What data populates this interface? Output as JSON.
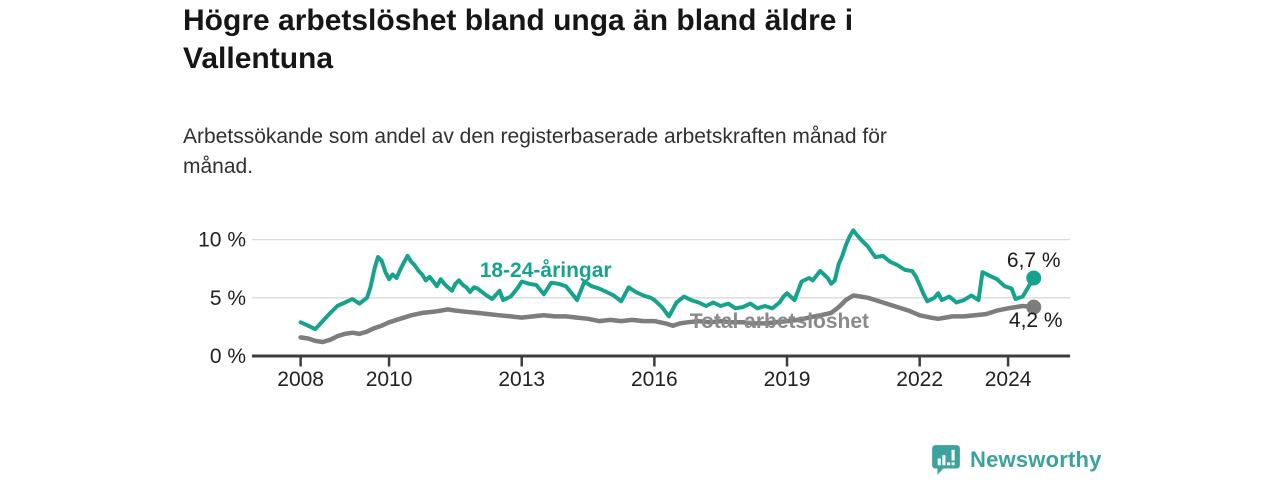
{
  "title": {
    "lines": [
      "Högre arbetslöshet bland unga än bland äldre i",
      "Vallentuna"
    ]
  },
  "subtitle": {
    "lines": [
      "Arbetssökande som andel av den registerbaserade arbetskraften månad för",
      "månad."
    ]
  },
  "colors": {
    "youth_line": "#17a28d",
    "total_line": "#7d7d7d",
    "total_label": "#8a8a8a",
    "axis": "#3d3d3d",
    "gridline": "#d9d9d9",
    "end_label_text": "#1a1a1a",
    "logo_teal": "#3ba39b"
  },
  "chart_data": {
    "type": "line",
    "title": "Högre arbetslöshet bland unga än bland äldre i Vallentuna",
    "subtitle": "Arbetssökande som andel av den registerbaserade arbetskraften månad för månad.",
    "xlabel": "",
    "ylabel": "",
    "x_axis": {
      "range": [
        2006.9,
        2025.4
      ],
      "ticks": [
        {
          "v": 2008,
          "label": "2008"
        },
        {
          "v": 2010,
          "label": "2010"
        },
        {
          "v": 2013,
          "label": "2013"
        },
        {
          "v": 2016,
          "label": "2016"
        },
        {
          "v": 2019,
          "label": "2019"
        },
        {
          "v": 2022,
          "label": "2022"
        },
        {
          "v": 2024,
          "label": "2024"
        }
      ]
    },
    "y_axis": {
      "range": [
        0,
        11.6
      ],
      "ticks": [
        {
          "v": 0,
          "label": "0 %"
        },
        {
          "v": 5,
          "label": "5 %"
        },
        {
          "v": 10,
          "label": "10 %"
        }
      ],
      "grid": true
    },
    "legend_position": "inline-labels",
    "series": [
      {
        "name": "Total arbetslöshet",
        "color": "#7d7d7d",
        "stroke_width": 4.5,
        "end_label": "4,2 %",
        "end_value": 4.2,
        "end_label_position": "below",
        "points": [
          [
            2008.0,
            1.6
          ],
          [
            2008.17,
            1.5
          ],
          [
            2008.33,
            1.3
          ],
          [
            2008.5,
            1.2
          ],
          [
            2008.67,
            1.4
          ],
          [
            2008.83,
            1.7
          ],
          [
            2009.0,
            1.9
          ],
          [
            2009.17,
            2.0
          ],
          [
            2009.33,
            1.9
          ],
          [
            2009.5,
            2.1
          ],
          [
            2009.67,
            2.4
          ],
          [
            2009.83,
            2.6
          ],
          [
            2010.0,
            2.9
          ],
          [
            2010.25,
            3.2
          ],
          [
            2010.5,
            3.5
          ],
          [
            2010.75,
            3.7
          ],
          [
            2011.0,
            3.8
          ],
          [
            2011.17,
            3.9
          ],
          [
            2011.33,
            4.0
          ],
          [
            2011.5,
            3.9
          ],
          [
            2011.75,
            3.8
          ],
          [
            2012.0,
            3.7
          ],
          [
            2012.25,
            3.6
          ],
          [
            2012.5,
            3.5
          ],
          [
            2012.75,
            3.4
          ],
          [
            2013.0,
            3.3
          ],
          [
            2013.25,
            3.4
          ],
          [
            2013.5,
            3.5
          ],
          [
            2013.75,
            3.4
          ],
          [
            2014.0,
            3.4
          ],
          [
            2014.25,
            3.3
          ],
          [
            2014.5,
            3.2
          ],
          [
            2014.75,
            3.0
          ],
          [
            2015.0,
            3.1
          ],
          [
            2015.25,
            3.0
          ],
          [
            2015.5,
            3.1
          ],
          [
            2015.75,
            3.0
          ],
          [
            2016.0,
            3.0
          ],
          [
            2016.25,
            2.8
          ],
          [
            2016.42,
            2.6
          ],
          [
            2016.58,
            2.8
          ],
          [
            2016.75,
            2.9
          ],
          [
            2017.0,
            3.0
          ],
          [
            2017.25,
            2.9
          ],
          [
            2017.5,
            3.0
          ],
          [
            2017.75,
            2.9
          ],
          [
            2018.0,
            2.9
          ],
          [
            2018.25,
            2.8
          ],
          [
            2018.5,
            2.8
          ],
          [
            2018.75,
            2.9
          ],
          [
            2019.0,
            3.0
          ],
          [
            2019.25,
            3.1
          ],
          [
            2019.5,
            3.3
          ],
          [
            2019.75,
            3.5
          ],
          [
            2020.0,
            3.7
          ],
          [
            2020.17,
            4.2
          ],
          [
            2020.33,
            4.8
          ],
          [
            2020.5,
            5.2
          ],
          [
            2020.67,
            5.1
          ],
          [
            2020.83,
            5.0
          ],
          [
            2021.0,
            4.8
          ],
          [
            2021.25,
            4.5
          ],
          [
            2021.5,
            4.2
          ],
          [
            2021.75,
            3.9
          ],
          [
            2022.0,
            3.5
          ],
          [
            2022.25,
            3.3
          ],
          [
            2022.42,
            3.2
          ],
          [
            2022.58,
            3.3
          ],
          [
            2022.75,
            3.4
          ],
          [
            2023.0,
            3.4
          ],
          [
            2023.25,
            3.5
          ],
          [
            2023.5,
            3.6
          ],
          [
            2023.75,
            3.9
          ],
          [
            2024.0,
            4.1
          ],
          [
            2024.17,
            4.2
          ],
          [
            2024.33,
            4.3
          ],
          [
            2024.58,
            4.2
          ]
        ]
      },
      {
        "name": "18-24-åringar",
        "color": "#17a28d",
        "stroke_width": 4,
        "end_label": "6,7 %",
        "end_value": 6.7,
        "end_label_position": "above",
        "points": [
          [
            2008.0,
            2.9
          ],
          [
            2008.17,
            2.6
          ],
          [
            2008.33,
            2.3
          ],
          [
            2008.5,
            3.0
          ],
          [
            2008.67,
            3.7
          ],
          [
            2008.83,
            4.3
          ],
          [
            2009.0,
            4.6
          ],
          [
            2009.17,
            4.9
          ],
          [
            2009.33,
            4.5
          ],
          [
            2009.5,
            5.0
          ],
          [
            2009.58,
            5.9
          ],
          [
            2009.67,
            7.5
          ],
          [
            2009.75,
            8.5
          ],
          [
            2009.83,
            8.2
          ],
          [
            2009.92,
            7.2
          ],
          [
            2010.0,
            6.6
          ],
          [
            2010.08,
            7.0
          ],
          [
            2010.17,
            6.7
          ],
          [
            2010.25,
            7.4
          ],
          [
            2010.33,
            8.0
          ],
          [
            2010.42,
            8.6
          ],
          [
            2010.5,
            8.1
          ],
          [
            2010.58,
            7.8
          ],
          [
            2010.67,
            7.3
          ],
          [
            2010.75,
            7.0
          ],
          [
            2010.83,
            6.5
          ],
          [
            2010.92,
            6.8
          ],
          [
            2011.0,
            6.4
          ],
          [
            2011.08,
            6.0
          ],
          [
            2011.17,
            6.6
          ],
          [
            2011.25,
            6.2
          ],
          [
            2011.33,
            5.9
          ],
          [
            2011.42,
            5.6
          ],
          [
            2011.5,
            6.2
          ],
          [
            2011.58,
            6.5
          ],
          [
            2011.67,
            6.1
          ],
          [
            2011.75,
            5.9
          ],
          [
            2011.83,
            5.5
          ],
          [
            2011.92,
            5.9
          ],
          [
            2012.0,
            5.8
          ],
          [
            2012.17,
            5.3
          ],
          [
            2012.33,
            4.9
          ],
          [
            2012.5,
            5.6
          ],
          [
            2012.58,
            4.8
          ],
          [
            2012.75,
            5.1
          ],
          [
            2012.92,
            5.9
          ],
          [
            2013.0,
            6.4
          ],
          [
            2013.17,
            6.2
          ],
          [
            2013.33,
            6.1
          ],
          [
            2013.5,
            5.3
          ],
          [
            2013.67,
            6.3
          ],
          [
            2013.83,
            6.2
          ],
          [
            2014.0,
            6.0
          ],
          [
            2014.17,
            5.2
          ],
          [
            2014.25,
            4.8
          ],
          [
            2014.42,
            6.4
          ],
          [
            2014.58,
            6.0
          ],
          [
            2014.75,
            5.8
          ],
          [
            2014.92,
            5.5
          ],
          [
            2015.08,
            5.2
          ],
          [
            2015.25,
            4.7
          ],
          [
            2015.42,
            5.9
          ],
          [
            2015.58,
            5.5
          ],
          [
            2015.75,
            5.2
          ],
          [
            2015.92,
            5.0
          ],
          [
            2016.0,
            4.8
          ],
          [
            2016.17,
            4.2
          ],
          [
            2016.33,
            3.4
          ],
          [
            2016.5,
            4.6
          ],
          [
            2016.67,
            5.1
          ],
          [
            2016.83,
            4.8
          ],
          [
            2017.0,
            4.6
          ],
          [
            2017.17,
            4.3
          ],
          [
            2017.33,
            4.6
          ],
          [
            2017.5,
            4.3
          ],
          [
            2017.67,
            4.5
          ],
          [
            2017.83,
            4.1
          ],
          [
            2018.0,
            4.2
          ],
          [
            2018.17,
            4.5
          ],
          [
            2018.33,
            4.1
          ],
          [
            2018.5,
            4.3
          ],
          [
            2018.67,
            4.1
          ],
          [
            2018.83,
            4.6
          ],
          [
            2018.92,
            5.1
          ],
          [
            2019.0,
            5.4
          ],
          [
            2019.17,
            4.8
          ],
          [
            2019.33,
            6.4
          ],
          [
            2019.5,
            6.7
          ],
          [
            2019.58,
            6.5
          ],
          [
            2019.75,
            7.3
          ],
          [
            2019.92,
            6.7
          ],
          [
            2020.0,
            6.2
          ],
          [
            2020.08,
            6.5
          ],
          [
            2020.17,
            7.9
          ],
          [
            2020.25,
            8.6
          ],
          [
            2020.33,
            9.5
          ],
          [
            2020.42,
            10.3
          ],
          [
            2020.5,
            10.8
          ],
          [
            2020.58,
            10.4
          ],
          [
            2020.67,
            10.0
          ],
          [
            2020.83,
            9.4
          ],
          [
            2020.92,
            8.9
          ],
          [
            2021.0,
            8.5
          ],
          [
            2021.17,
            8.6
          ],
          [
            2021.33,
            8.1
          ],
          [
            2021.5,
            7.8
          ],
          [
            2021.67,
            7.4
          ],
          [
            2021.83,
            7.3
          ],
          [
            2021.92,
            6.8
          ],
          [
            2022.0,
            6.1
          ],
          [
            2022.08,
            5.4
          ],
          [
            2022.17,
            4.7
          ],
          [
            2022.33,
            5.0
          ],
          [
            2022.42,
            5.4
          ],
          [
            2022.5,
            4.8
          ],
          [
            2022.67,
            5.1
          ],
          [
            2022.83,
            4.6
          ],
          [
            2023.0,
            4.8
          ],
          [
            2023.17,
            5.2
          ],
          [
            2023.33,
            4.8
          ],
          [
            2023.42,
            7.2
          ],
          [
            2023.58,
            6.9
          ],
          [
            2023.75,
            6.6
          ],
          [
            2023.92,
            6.0
          ],
          [
            2024.08,
            5.8
          ],
          [
            2024.17,
            4.9
          ],
          [
            2024.33,
            5.1
          ],
          [
            2024.42,
            5.7
          ],
          [
            2024.58,
            6.7
          ]
        ]
      }
    ],
    "annotations": [
      {
        "text": "18-24-åringar",
        "year": 2012.05,
        "value": 7.4,
        "color": "#17a28d"
      },
      {
        "text": "Total arbetslöshet",
        "year": 2016.8,
        "value": 3.0,
        "color": "#8a8a8a"
      }
    ]
  },
  "logo": {
    "text": "Newsworthy",
    "icon": "speech-bubble-bar-chart-icon"
  }
}
